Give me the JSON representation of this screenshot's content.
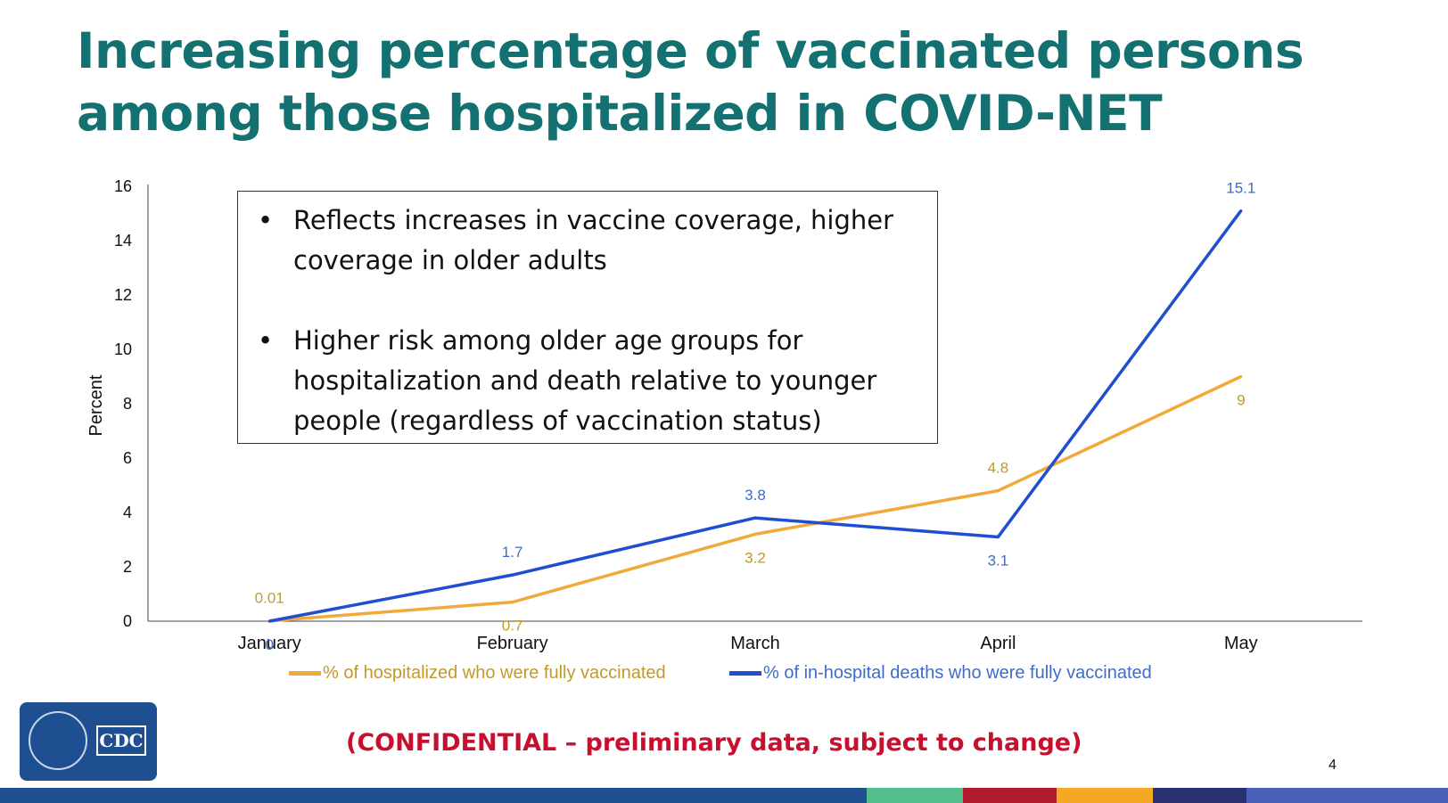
{
  "title_line1": "Increasing percentage of vaccinated persons",
  "title_line2": "among those hospitalized in COVID-NET",
  "callout": {
    "bullet_glyph": "•",
    "bullets": [
      "Reflects increases in vaccine coverage, higher coverage in older adults",
      "Higher risk among older age groups for hospitalization and death relative to younger people (regardless of vaccination status)"
    ]
  },
  "chart_data": {
    "type": "line",
    "categories": [
      "January",
      "February",
      "March",
      "April",
      "May"
    ],
    "ylabel": "Percent",
    "ylim": [
      0,
      16
    ],
    "yticks": [
      0,
      2,
      4,
      6,
      8,
      10,
      12,
      14,
      16
    ],
    "grid": false,
    "legend_position": "bottom",
    "series": [
      {
        "name": "% of hospitalized who were fully vaccinated",
        "color": "#f2a93b",
        "label_color": "#c09a2a",
        "values": [
          0.01,
          0.7,
          3.2,
          4.8,
          9
        ],
        "labels": [
          "0.01",
          "0.7",
          "3.2",
          "4.8",
          "9"
        ]
      },
      {
        "name": "% of in-hospital deaths who were fully vaccinated",
        "color": "#1f4fd0",
        "label_color": "#3f6cc8",
        "values": [
          0,
          1.7,
          3.8,
          3.1,
          15.1
        ],
        "labels": [
          "0",
          "1.7",
          "3.8",
          "3.1",
          "15.1"
        ]
      }
    ]
  },
  "logo_text": "CDC",
  "confidential_note": "(CONFIDENTIAL – preliminary data, subject to change)",
  "page_number": "4",
  "footer_colors": [
    "#1d4f91",
    "#1d4f91",
    "#53bd8b",
    "#b01c2e",
    "#f5a824",
    "#2a2f72",
    "#4a5fb8"
  ]
}
